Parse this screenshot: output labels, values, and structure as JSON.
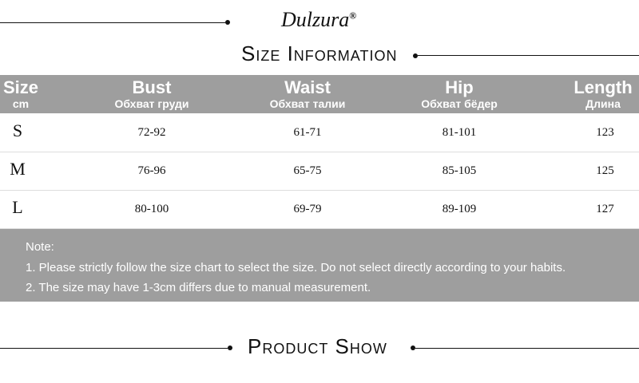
{
  "brand": "Dulzura",
  "brand_mark": "®",
  "section_title": "Size Information",
  "table": {
    "headers": [
      {
        "main": "Size",
        "sub": "cm"
      },
      {
        "main": "Bust",
        "sub": "Обхват груди"
      },
      {
        "main": "Waist",
        "sub": "Обхват талии"
      },
      {
        "main": "Hip",
        "sub": "Обхват бёдер"
      },
      {
        "main": "Length",
        "sub": "Длина"
      }
    ],
    "rows": [
      [
        "S",
        "72-92",
        "61-71",
        "81-101",
        "123"
      ],
      [
        "M",
        "76-96",
        "65-75",
        "85-105",
        "125"
      ],
      [
        "L",
        "80-100",
        "69-79",
        "89-109",
        "127"
      ]
    ]
  },
  "note": {
    "label": "Note:",
    "items": [
      "1. Please strictly follow the size chart to select the size. Do not select directly according to your habits.",
      "2. The size may have 1-3cm differs due to manual measurement."
    ]
  },
  "footer_title": "Product Show",
  "colors": {
    "header_bg": "#9e9e9e",
    "text": "#111111"
  }
}
